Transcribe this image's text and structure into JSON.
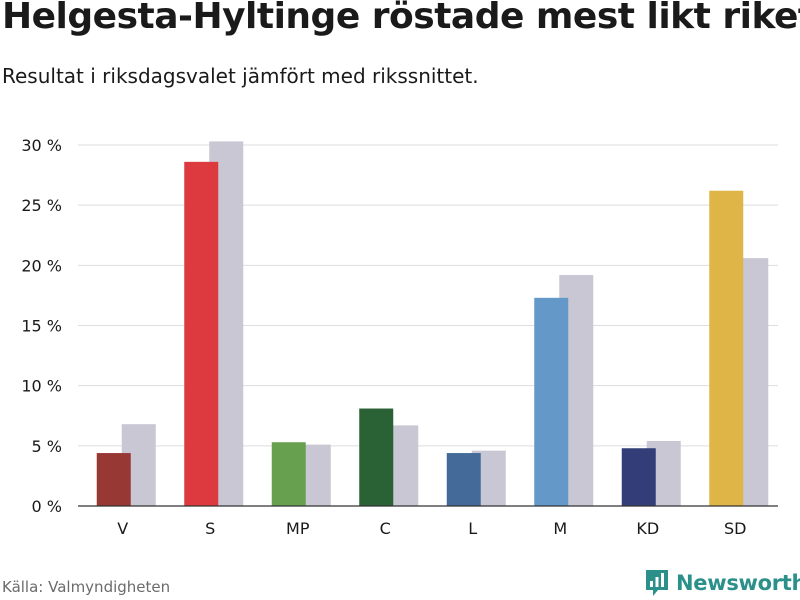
{
  "header": {
    "title": "Helgesta-Hyltinge röstade mest likt riket",
    "subtitle": "Resultat i riksdagsvalet jämfört med rikssnittet."
  },
  "footer": {
    "source": "Källa: Valmyndigheten",
    "brand": "Newsworthy"
  },
  "colors": {
    "national": "#c8c7d3",
    "grid": "#dddddd",
    "axis": "#333333",
    "brand": "#2b8f8a"
  },
  "chart_data": {
    "type": "bar",
    "title": "",
    "xlabel": "",
    "ylabel": "",
    "ylim": [
      0,
      30
    ],
    "yticks": [
      0,
      5,
      10,
      15,
      20,
      25,
      30
    ],
    "ytick_labels": [
      "0 %",
      "5 %",
      "10 %",
      "15 %",
      "20 %",
      "25 %",
      "30 %"
    ],
    "grid": true,
    "categories": [
      "V",
      "S",
      "MP",
      "C",
      "L",
      "M",
      "KD",
      "SD"
    ],
    "series": [
      {
        "values": [
          4.4,
          28.6,
          5.3,
          8.1,
          4.4,
          17.3,
          4.8,
          26.2
        ],
        "colors": [
          "#983835",
          "#dc3a3e",
          "#67a04f",
          "#2a6135",
          "#436a99",
          "#6398c9",
          "#333e78",
          "#e0b548"
        ]
      },
      {
        "values": [
          6.8,
          30.3,
          5.1,
          6.7,
          4.6,
          19.2,
          5.4,
          20.6
        ],
        "color": "#c8c7d3"
      }
    ]
  }
}
